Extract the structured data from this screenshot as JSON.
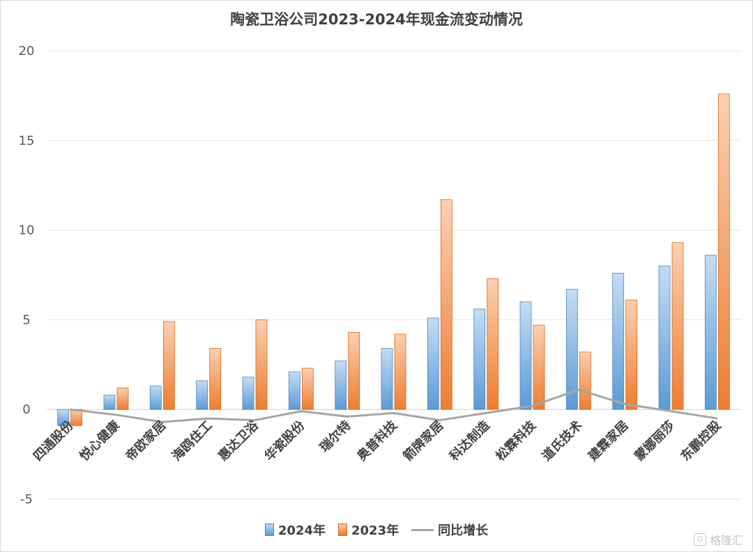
{
  "chart_data": {
    "type": "bar",
    "title": "陶瓷卫浴公司2023-2024年现金流变动情况",
    "xlabel": "",
    "ylabel": "",
    "ylim": [
      -5,
      20
    ],
    "yticks": [
      20,
      15,
      10,
      5,
      0,
      -5
    ],
    "categories": [
      "四通股份",
      "悦心健康",
      "帝欧家居",
      "海鸥住工",
      "惠达卫浴",
      "华瓷股份",
      "瑞尔特",
      "奥普科技",
      "箭牌家居",
      "科达制造",
      "松霖科技",
      "道氏技术",
      "建霖家居",
      "蒙娜丽莎",
      "东鹏控股"
    ],
    "series": [
      {
        "name": "2024年",
        "kind": "bar",
        "color": "#5b9bd5",
        "values": [
          -0.9,
          0.8,
          1.3,
          1.6,
          1.8,
          2.1,
          2.7,
          3.4,
          5.1,
          5.6,
          6.0,
          6.7,
          7.6,
          8.0,
          8.6
        ]
      },
      {
        "name": "2023年",
        "kind": "bar",
        "color": "#ed7d31",
        "values": [
          -0.9,
          1.2,
          4.9,
          3.4,
          5.0,
          2.3,
          4.3,
          4.2,
          11.7,
          7.3,
          4.7,
          3.2,
          6.1,
          9.3,
          17.6
        ]
      },
      {
        "name": "同比增长",
        "kind": "line",
        "color": "#a5a5a5",
        "values": [
          0.0,
          -0.3,
          -0.7,
          -0.5,
          -0.6,
          -0.1,
          -0.4,
          -0.2,
          -0.6,
          -0.2,
          0.2,
          1.1,
          0.3,
          -0.1,
          -0.5
        ]
      }
    ],
    "legend": "bottom",
    "grid": true
  },
  "watermark": {
    "text": "格隆汇",
    "mark": "G"
  }
}
